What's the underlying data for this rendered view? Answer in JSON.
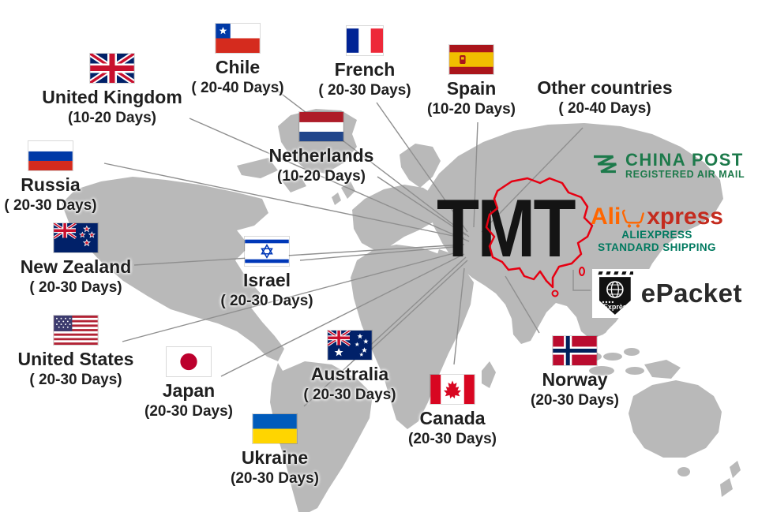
{
  "title": "TMT",
  "countries": [
    {
      "id": "uk",
      "name": "United Kingdom",
      "days": "(10-20 Days)",
      "flag": "uk"
    },
    {
      "id": "chile",
      "name": "Chile",
      "days": "( 20-40 Days)",
      "flag": "chile"
    },
    {
      "id": "french",
      "name": "French",
      "days": "( 20-30 Days)",
      "flag": "france"
    },
    {
      "id": "spain",
      "name": "Spain",
      "days": "(10-20 Days)",
      "flag": "spain"
    },
    {
      "id": "other",
      "name": "Other countries",
      "days": "( 20-40 Days)",
      "flag": null
    },
    {
      "id": "netherlands",
      "name": "Netherlands",
      "days": "(10-20 Days)",
      "flag": "netherlands"
    },
    {
      "id": "russia",
      "name": "Russia",
      "days": "( 20-30 Days)",
      "flag": "russia"
    },
    {
      "id": "newzealand",
      "name": "New Zealand",
      "days": "( 20-30 Days)",
      "flag": "newzealand"
    },
    {
      "id": "israel",
      "name": "Israel",
      "days": "( 20-30 Days)",
      "flag": "israel"
    },
    {
      "id": "us",
      "name": "United States",
      "days": "( 20-30 Days)",
      "flag": "us"
    },
    {
      "id": "japan",
      "name": "Japan",
      "days": "(20-30 Days)",
      "flag": "japan"
    },
    {
      "id": "australia",
      "name": "Australia",
      "days": "( 20-30 Days)",
      "flag": "australia"
    },
    {
      "id": "ukraine",
      "name": "Ukraine",
      "days": "(20-30 Days)",
      "flag": "ukraine"
    },
    {
      "id": "canada",
      "name": "Canada",
      "days": "(20-30 Days)",
      "flag": "canada"
    },
    {
      "id": "norway",
      "name": "Norway",
      "days": "(20-30 Days)",
      "flag": "norway"
    }
  ],
  "logos": {
    "china_post": {
      "line1": "CHINA POST",
      "line2": "REGISTERED AIR MAIL",
      "color": "#1d7a4b"
    },
    "aliexpress": {
      "ali": "Ali",
      "xpress": "xpress",
      "sub1": "ALIEXPRESS",
      "sub2": "STANDARD SHIPPING",
      "orange": "#ff6600",
      "dark_red": "#c42b1e",
      "green": "#00795f"
    },
    "epacket": {
      "label": "ePacket",
      "badge_text": "Exprès"
    }
  },
  "colors": {
    "map_land": "#b9b9b9",
    "china_outline": "#e60012",
    "connector_line": "#8f8f8f",
    "label_text": "#1f1f1f"
  }
}
